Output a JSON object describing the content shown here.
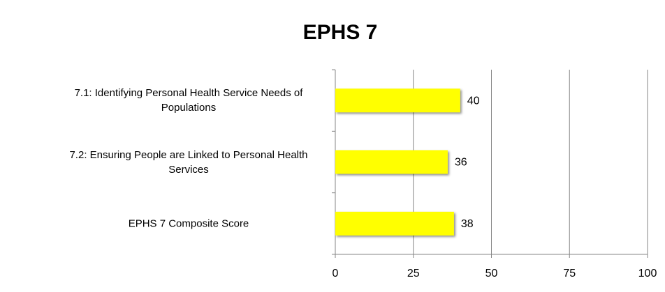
{
  "chart_data": {
    "type": "barh",
    "title": "EPHS 7",
    "categories": [
      "7.1: Identifying Personal Health Service Needs of Populations",
      "7.2: Ensuring People are Linked to Personal Health Services",
      "EPHS 7 Composite Score"
    ],
    "values": [
      40,
      36,
      38
    ],
    "color": "#ffff00",
    "xlim": [
      0,
      100
    ],
    "xticks": [
      0,
      25,
      50,
      75,
      100
    ],
    "grid": true
  }
}
